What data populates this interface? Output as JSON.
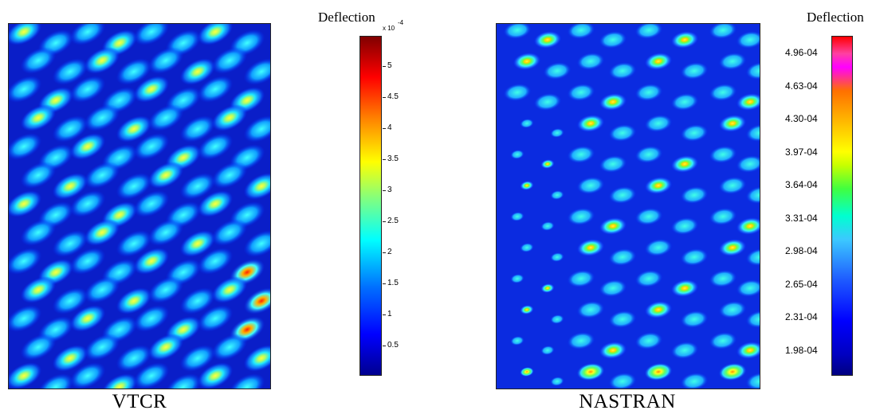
{
  "left_panel": {
    "caption": "VTCR",
    "colorbar": {
      "title": "Deflection",
      "multiplier": "x 10",
      "exponent": "-4",
      "ticks": [
        "5",
        "4.5",
        "4",
        "3.5",
        "3",
        "2.5",
        "2",
        "1.5",
        "1",
        "0.5"
      ],
      "tick_values": [
        5,
        4.5,
        4,
        3.5,
        3,
        2.5,
        2,
        1.5,
        1,
        0.5
      ],
      "range": [
        0.05,
        5.5
      ]
    }
  },
  "right_panel": {
    "caption": "NASTRAN",
    "colorbar": {
      "title": "Deflection",
      "ticks": [
        "4.96-04",
        "4.63-04",
        "4.30-04",
        "3.97-04",
        "3.64-04",
        "3.31-04",
        "2.98-04",
        "2.65-04",
        "2.31-04",
        "1.98-04"
      ]
    }
  },
  "colors": {
    "field_low": "#00008f",
    "field_high": "#ff0000",
    "background": "#ffffff"
  }
}
